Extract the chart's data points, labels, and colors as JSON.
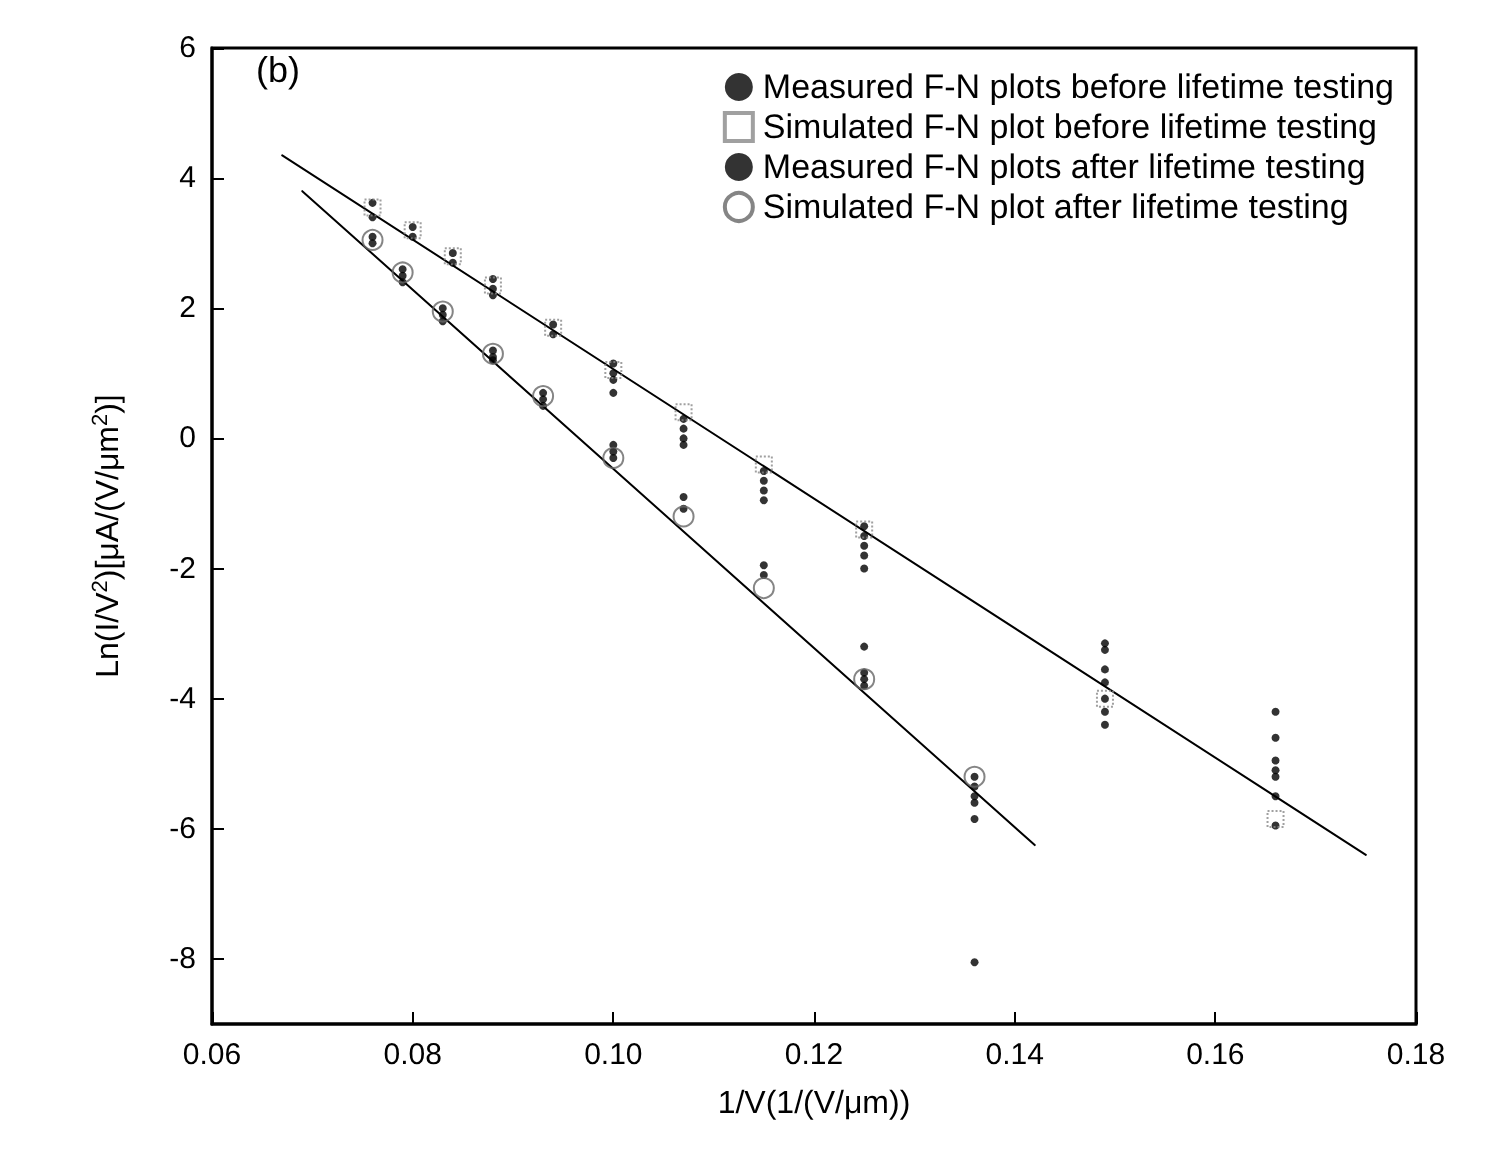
{
  "chart_data": {
    "type": "scatter",
    "xlabel": "1/V(1/(V/μm))",
    "ylabel": "Ln(I/V$^{2}$)[μA/(V/μm$^{2}$)]",
    "annotations": [
      "(b)"
    ],
    "xlim": [
      0.06,
      0.18
    ],
    "xticks": [
      {
        "value": 0.06,
        "label": "0.06"
      },
      {
        "value": 0.08,
        "label": "0.08"
      },
      {
        "value": 0.1,
        "label": "0.10"
      },
      {
        "value": 0.12,
        "label": "0.12"
      },
      {
        "value": 0.14,
        "label": "0.14"
      },
      {
        "value": 0.16,
        "label": "0.16"
      },
      {
        "value": 0.18,
        "label": "0.18"
      }
    ],
    "ylim": [
      -9,
      6
    ],
    "yticks": [
      -8,
      -6,
      -4,
      -2,
      0,
      2,
      4,
      6
    ],
    "grid": false,
    "legend": "top right",
    "series": [
      {
        "name": "Measured F-N plots before lifetime testing",
        "color": "#000000",
        "marker": "circle",
        "x": [
          0.076,
          0.076,
          0.08,
          0.08,
          0.084,
          0.084,
          0.088,
          0.088,
          0.088,
          0.094,
          0.094,
          0.1,
          0.1,
          0.1,
          0.1,
          0.107,
          0.107,
          0.107,
          0.107,
          0.115,
          0.115,
          0.115,
          0.115,
          0.125,
          0.125,
          0.125,
          0.125,
          0.125,
          0.149,
          0.149,
          0.149,
          0.149,
          0.149,
          0.149,
          0.149,
          0.166,
          0.166,
          0.166,
          0.166,
          0.166,
          0.166,
          0.166
        ],
        "values": [
          3.62,
          3.4,
          3.25,
          3.1,
          2.85,
          2.7,
          2.45,
          2.3,
          2.2,
          1.75,
          1.6,
          1.15,
          1.0,
          0.9,
          0.7,
          0.3,
          0.15,
          0,
          -0.1,
          -0.5,
          -0.65,
          -0.8,
          -0.95,
          -1.35,
          -1.5,
          -1.65,
          -1.8,
          -2.0,
          -3.15,
          -3.25,
          -3.55,
          -3.75,
          -4.0,
          -4.2,
          -4.4,
          -4.2,
          -4.6,
          -4.95,
          -5.1,
          -5.2,
          -5.5,
          -5.95
        ]
      },
      {
        "name": "Simulated F-N plot before lifetime testing",
        "color": "#888888",
        "marker": "square",
        "x": [
          0.076,
          0.08,
          0.084,
          0.088,
          0.094,
          0.1,
          0.107,
          0.115,
          0.125,
          0.149,
          0.166
        ],
        "values": [
          3.55,
          3.2,
          2.8,
          2.35,
          1.7,
          1.05,
          0.4,
          -0.4,
          -1.4,
          -4.0,
          -5.85
        ]
      },
      {
        "name": "Measured F-N plots after lifetime testing",
        "color": "#000000",
        "marker": "circle",
        "x": [
          0.076,
          0.076,
          0.079,
          0.079,
          0.079,
          0.083,
          0.083,
          0.083,
          0.088,
          0.088,
          0.088,
          0.093,
          0.093,
          0.093,
          0.1,
          0.1,
          0.1,
          0.107,
          0.107,
          0.115,
          0.115,
          0.125,
          0.125,
          0.125,
          0.125,
          0.136,
          0.136,
          0.136,
          0.136,
          0.136,
          0.136
        ],
        "values": [
          3.1,
          3.0,
          2.6,
          2.5,
          2.4,
          2.0,
          1.9,
          1.8,
          1.35,
          1.25,
          1.2,
          0.7,
          0.6,
          0.5,
          -0.1,
          -0.2,
          -0.3,
          -0.9,
          -1.08,
          -1.95,
          -2.1,
          -3.2,
          -3.6,
          -3.7,
          -3.8,
          -5.2,
          -5.35,
          -5.5,
          -5.6,
          -5.85,
          -8.05
        ]
      },
      {
        "name": "Simulated F-N plot after lifetime testing",
        "color": "#666666",
        "marker": "circle_open",
        "x": [
          0.076,
          0.079,
          0.083,
          0.088,
          0.093,
          0.1,
          0.107,
          0.115,
          0.125,
          0.136
        ],
        "values": [
          3.05,
          2.55,
          1.95,
          1.3,
          0.65,
          -0.3,
          -1.2,
          -2.3,
          -3.7,
          -5.2
        ]
      },
      {
        "type": "line",
        "color": "#000000",
        "marker": "none",
        "line_style": "solid",
        "x": [
          0.067,
          0.175
        ],
        "values": [
          4.35,
          -6.4
        ]
      },
      {
        "type": "line",
        "color": "#000000",
        "marker": "none",
        "line_style": "solid",
        "x": [
          0.069,
          0.142
        ],
        "values": [
          3.8,
          -6.25
        ]
      }
    ]
  }
}
